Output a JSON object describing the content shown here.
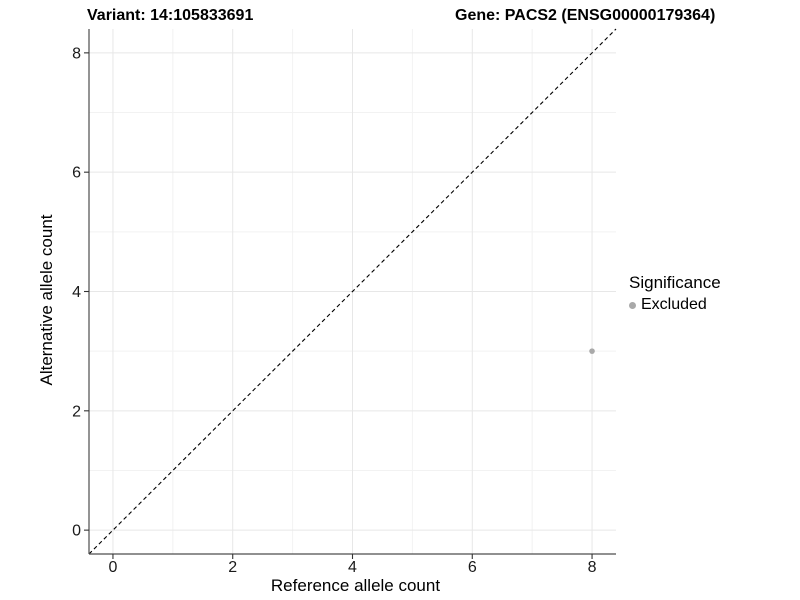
{
  "chart_data": {
    "type": "scatter",
    "titles": {
      "left": "Variant: 14:105833691",
      "right": "Gene: PACS2 (ENSG00000179364)"
    },
    "xlabel": "Reference allele count",
    "ylabel": "Alternative allele count",
    "xlim": [
      -0.4,
      8.4
    ],
    "ylim": [
      -0.4,
      8.4
    ],
    "x_ticks": [
      0,
      2,
      4,
      6,
      8
    ],
    "y_ticks": [
      0,
      2,
      4,
      6,
      8
    ],
    "x_minor_ticks": [
      1,
      3,
      5,
      7
    ],
    "y_minor_ticks": [
      1,
      3,
      5,
      7
    ],
    "grid": "major+minor",
    "reference_line": {
      "type": "identity y=x",
      "style": "dashed",
      "color": "#000000",
      "from": [
        -0.4,
        -0.4
      ],
      "to": [
        8.4,
        8.4
      ]
    },
    "series": [
      {
        "name": "Excluded",
        "color": "#a9a9a9",
        "points": [
          [
            8,
            3
          ]
        ]
      }
    ],
    "legend": {
      "title": "Significance",
      "position": "right",
      "items": [
        {
          "label": "Excluded",
          "color": "#a9a9a9",
          "marker": "circle"
        }
      ]
    },
    "colors": {
      "background": "#ffffff",
      "grid_major": "#e7e7e7",
      "grid_minor": "#f2f2f2",
      "axis": "#4d4d4d",
      "tick": "#333333",
      "text": "#1a1a1a"
    }
  }
}
